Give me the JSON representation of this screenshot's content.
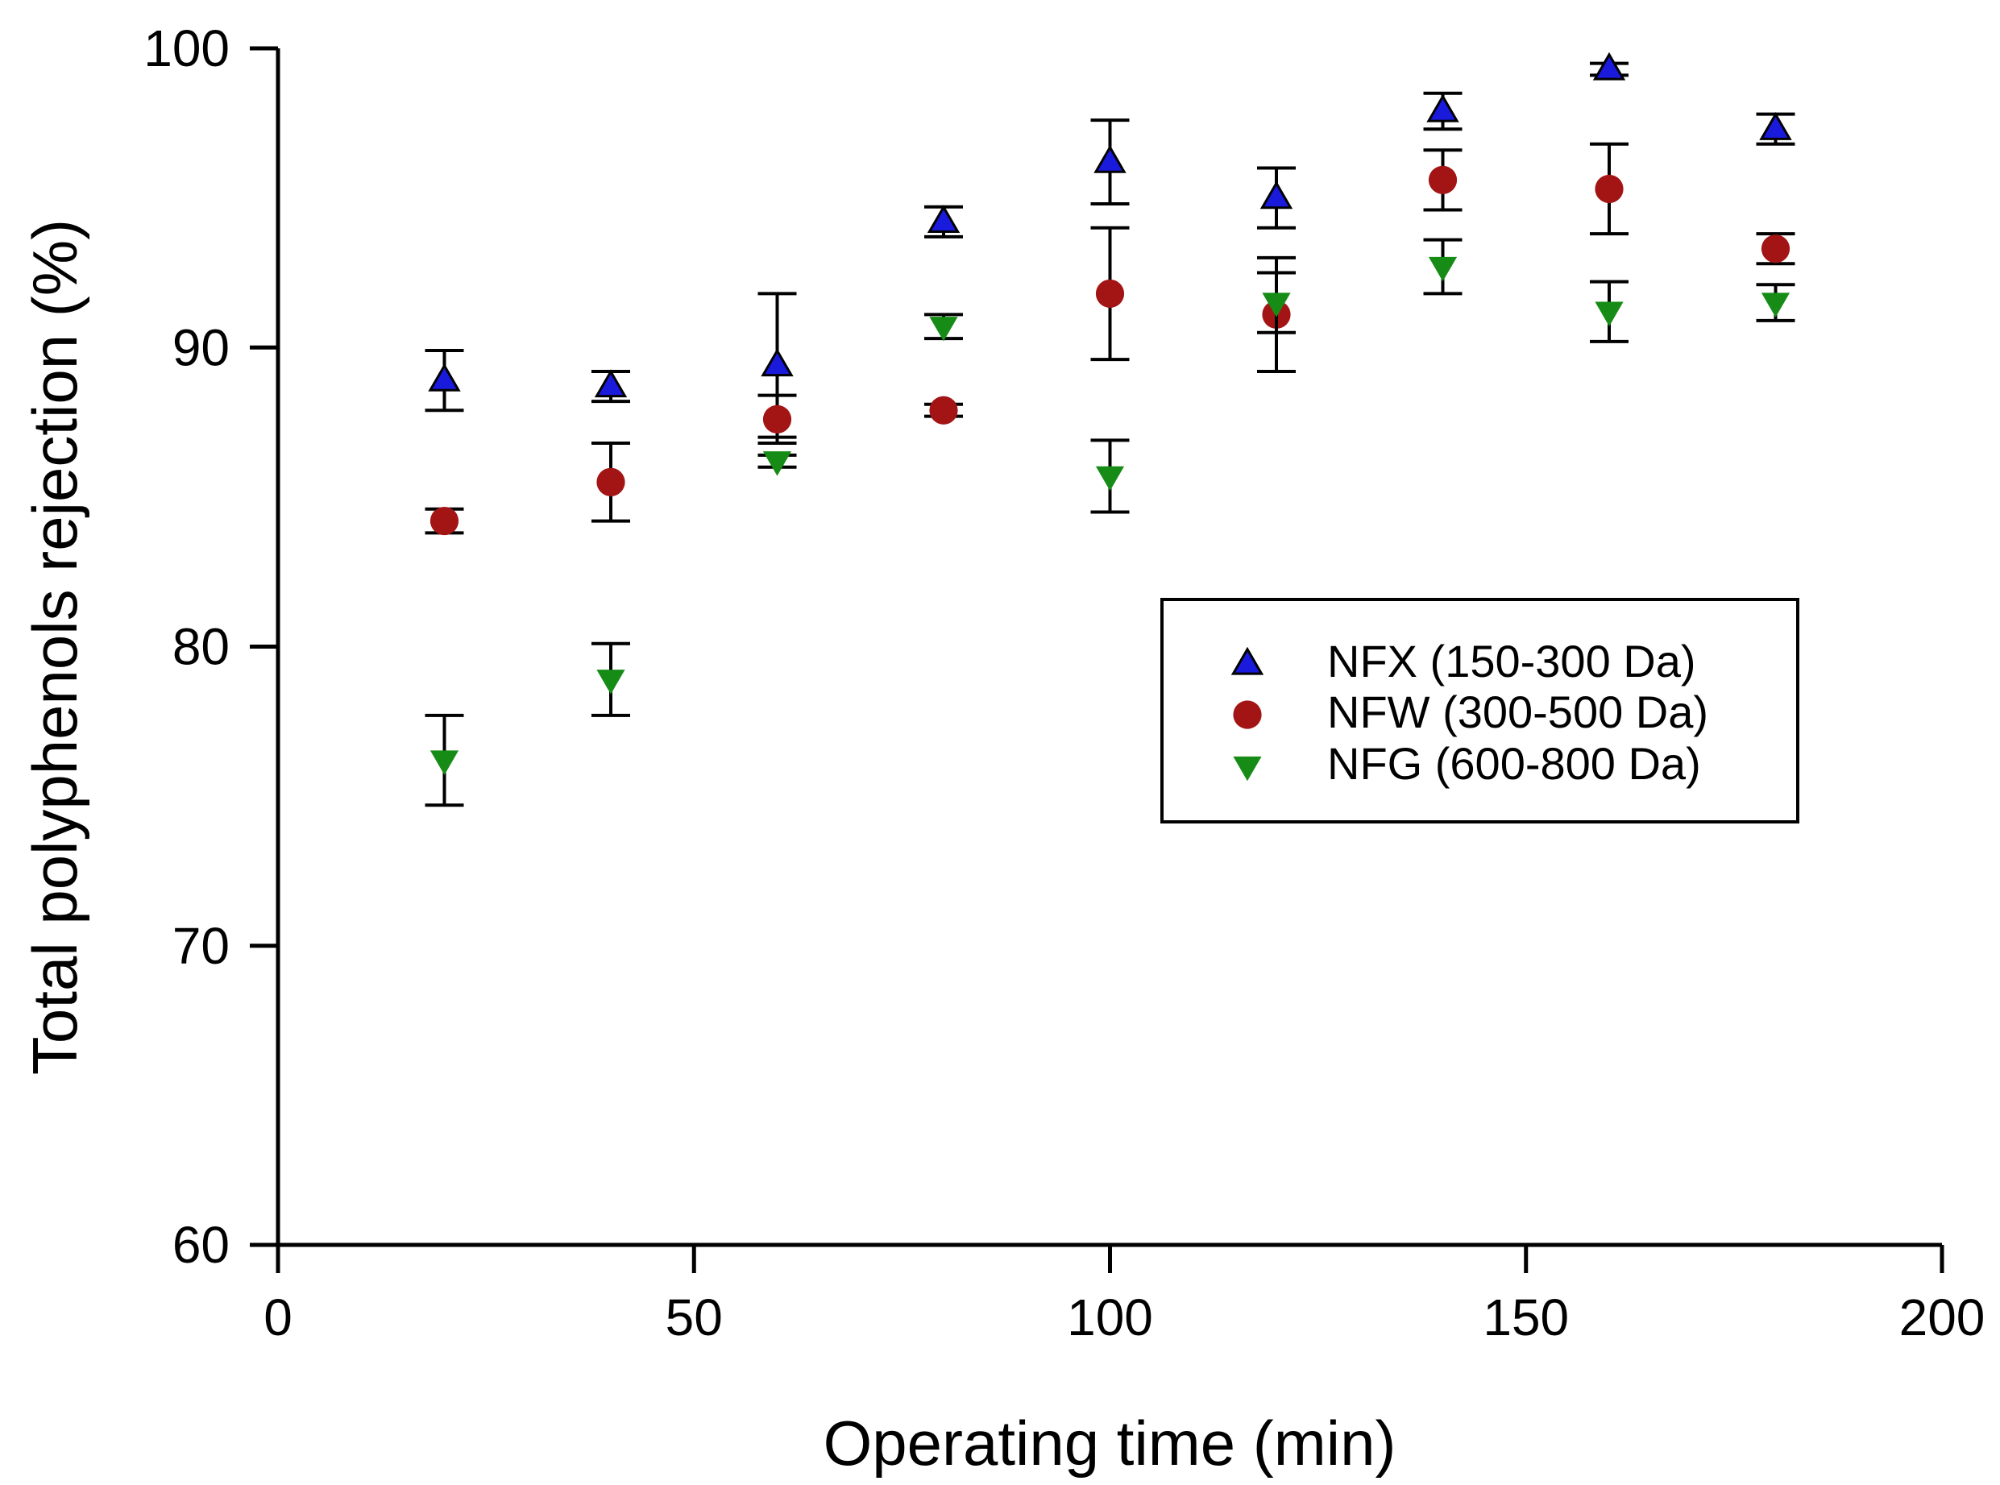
{
  "chart_data": {
    "type": "scatter",
    "title": "",
    "xlabel": "Operating time (min)",
    "ylabel": "Total polyphenols rejection (%)",
    "xlim": [
      0,
      200
    ],
    "ylim": [
      60,
      100
    ],
    "xticks": [
      0,
      50,
      100,
      150,
      200
    ],
    "yticks": [
      60,
      70,
      80,
      90,
      100
    ],
    "grid": false,
    "legend_position": "center-right",
    "series": [
      {
        "name": "NFX (150-300 Da)",
        "marker": "triangle-up",
        "color": "#1a1adc",
        "x": [
          20,
          40,
          60,
          80,
          100,
          120,
          140,
          160,
          180
        ],
        "y": [
          88.9,
          88.7,
          89.4,
          94.2,
          96.2,
          95.0,
          97.9,
          99.3,
          97.3
        ],
        "err": [
          1.0,
          0.5,
          2.4,
          0.5,
          1.4,
          1.0,
          0.6,
          0.2,
          0.5
        ]
      },
      {
        "name": "NFW (300-500 Da)",
        "marker": "circle",
        "color": "#a31515",
        "x": [
          20,
          40,
          60,
          80,
          100,
          120,
          140,
          160,
          180
        ],
        "y": [
          84.2,
          85.5,
          87.6,
          87.9,
          91.8,
          91.1,
          95.6,
          95.3,
          93.3
        ],
        "err": [
          0.4,
          1.3,
          0.8,
          0.2,
          2.2,
          1.9,
          1.0,
          1.5,
          0.5
        ]
      },
      {
        "name": "NFG (600-800 Da)",
        "marker": "triangle-down",
        "color": "#168c16",
        "x": [
          20,
          40,
          60,
          80,
          100,
          120,
          140,
          160,
          180
        ],
        "y": [
          76.2,
          78.9,
          86.2,
          90.7,
          85.7,
          91.5,
          92.7,
          91.2,
          91.5
        ],
        "err": [
          1.5,
          1.2,
          0.2,
          0.4,
          1.2,
          1.0,
          0.9,
          1.0,
          0.6
        ]
      }
    ]
  }
}
